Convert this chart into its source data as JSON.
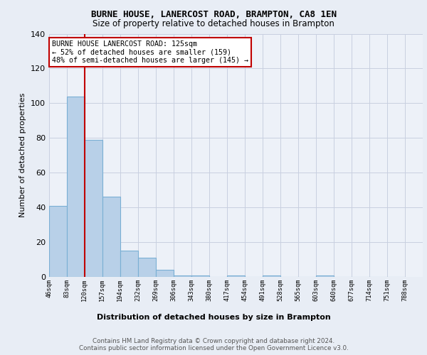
{
  "title1": "BURNE HOUSE, LANERCOST ROAD, BRAMPTON, CA8 1EN",
  "title2": "Size of property relative to detached houses in Brampton",
  "xlabel": "Distribution of detached houses by size in Brampton",
  "ylabel": "Number of detached properties",
  "bar_values": [
    41,
    104,
    79,
    46,
    15,
    11,
    4,
    1,
    1,
    0,
    1,
    0,
    1,
    0,
    0,
    1
  ],
  "bin_width": 37,
  "bar_color": "#b8d0e8",
  "bar_edge_color": "#7aafd4",
  "vline_x": 120,
  "vline_color": "#c00000",
  "annotation_text": "BURNE HOUSE LANERCOST ROAD: 125sqm\n← 52% of detached houses are smaller (159)\n48% of semi-detached houses are larger (145) →",
  "annotation_box_color": "white",
  "annotation_box_edge": "#c00000",
  "background_color": "#e8edf5",
  "plot_bg_color": "#edf1f8",
  "grid_color": "#c8cfe0",
  "ylim": [
    0,
    140
  ],
  "yticks": [
    0,
    20,
    40,
    60,
    80,
    100,
    120,
    140
  ],
  "footer_text": "Contains HM Land Registry data © Crown copyright and database right 2024.\nContains public sector information licensed under the Open Government Licence v3.0.",
  "tick_labels": [
    "46sqm",
    "83sqm",
    "120sqm",
    "157sqm",
    "194sqm",
    "232sqm",
    "269sqm",
    "306sqm",
    "343sqm",
    "380sqm",
    "417sqm",
    "454sqm",
    "491sqm",
    "528sqm",
    "565sqm",
    "603sqm",
    "640sqm",
    "677sqm",
    "714sqm",
    "751sqm",
    "788sqm"
  ],
  "n_ticks": 21,
  "all_edges": [
    46,
    83,
    120,
    157,
    194,
    232,
    269,
    306,
    343,
    380,
    417,
    454,
    491,
    528,
    565,
    603,
    640,
    677,
    714,
    751,
    788
  ]
}
